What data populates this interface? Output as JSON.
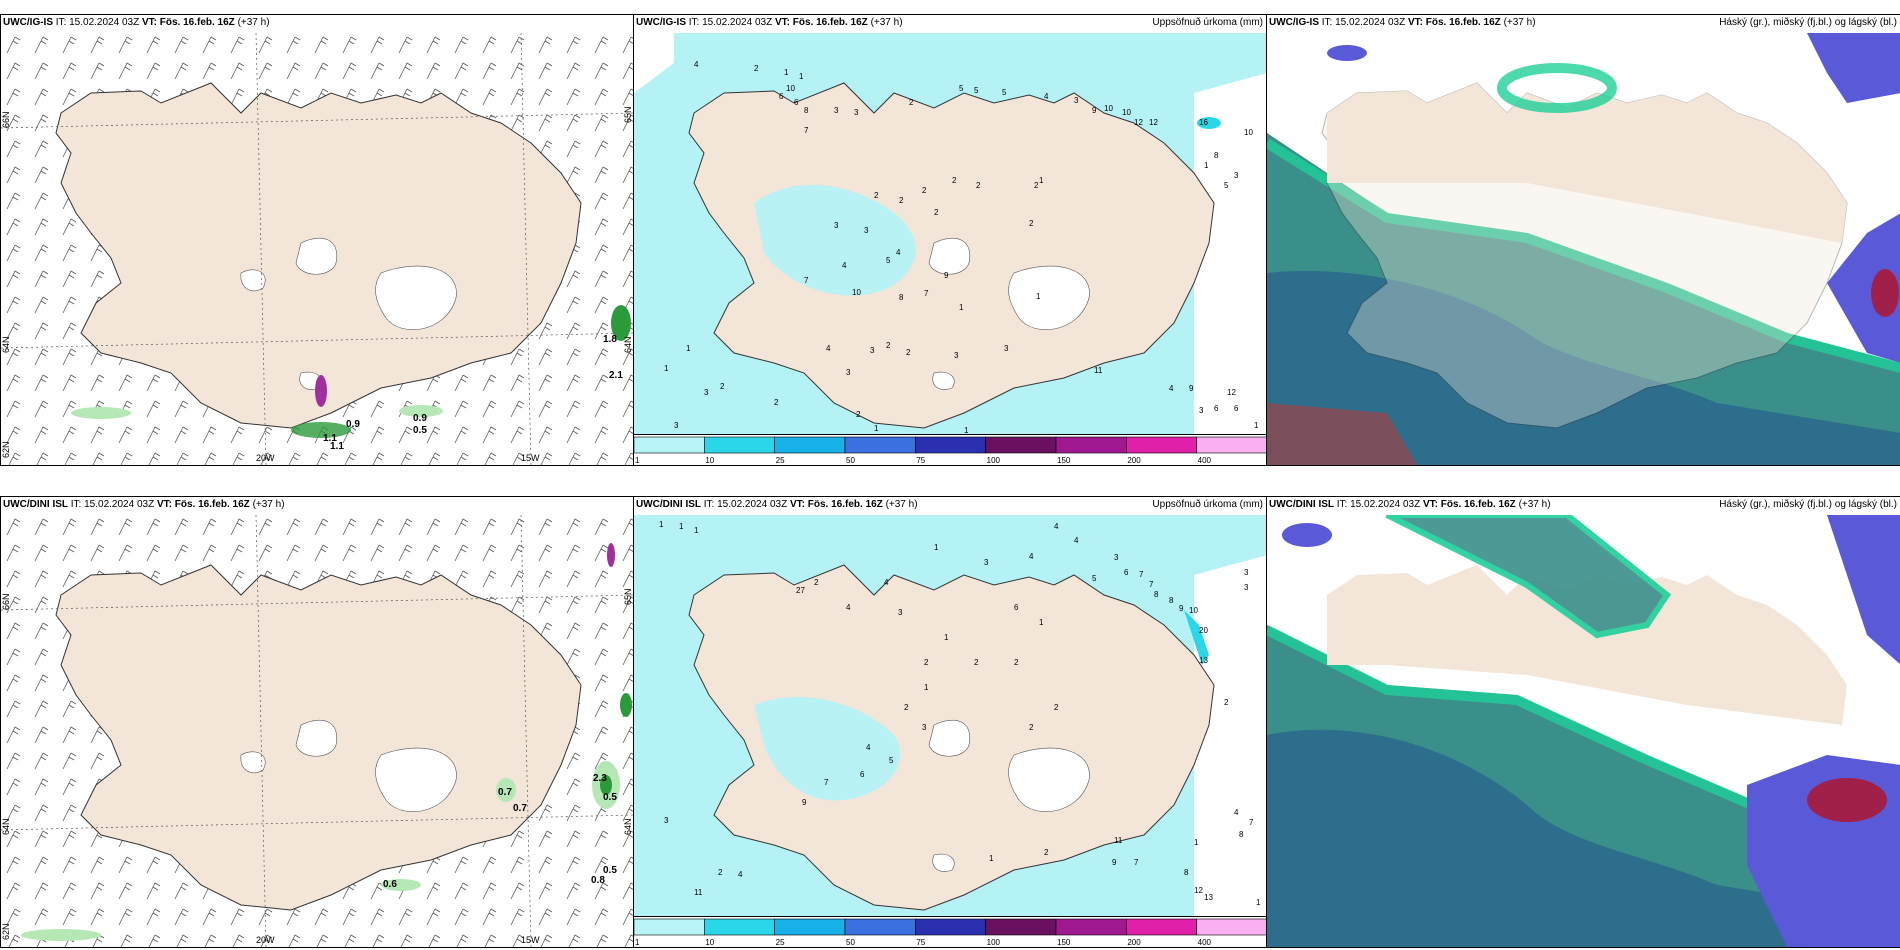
{
  "panels": [
    {
      "model": "UWC/IG-IS",
      "it_label": "IT:",
      "it_value": "15.02.2024 03Z",
      "vt_label": "VT:",
      "vt_value": "Fös. 16.feb. 16Z",
      "lead": "(+37 h)",
      "right_title": "",
      "lat_labels": [
        "66N",
        "64N",
        "62N"
      ],
      "lat_labels_right": [
        "65N",
        "64N"
      ],
      "lon_labels": [
        "20W",
        "15W"
      ],
      "values": [
        "1.8",
        "2.1",
        "0.9",
        "0.5",
        "0.9",
        "1.1",
        "1.1"
      ]
    },
    {
      "model": "UWC/IG-IS",
      "it_label": "IT:",
      "it_value": "15.02.2024 03Z",
      "vt_label": "VT:",
      "vt_value": "Fös. 16.feb. 16Z",
      "lead": "(+37 h)",
      "right_title": "Uppsöfnuð úrkoma (mm)",
      "values": [
        "4",
        "2",
        "1",
        "1",
        "6",
        "10",
        "6",
        "8",
        "7",
        "3",
        "3",
        "2",
        "5",
        "5",
        "5",
        "4",
        "3",
        "9",
        "10",
        "10",
        "16",
        "12",
        "12",
        "10",
        "1",
        "8",
        "5",
        "3",
        "2",
        "2",
        "2",
        "2",
        "1",
        "2",
        "2",
        "2",
        "2",
        "3",
        "3",
        "4",
        "4",
        "7",
        "5",
        "9",
        "10",
        "8",
        "7",
        "1",
        "1",
        "3",
        "2",
        "3",
        "2",
        "3",
        "4",
        "3",
        "11",
        "12",
        "6",
        "6",
        "9",
        "3",
        "4",
        "2",
        "3",
        "1",
        "1",
        "2",
        "2",
        "1",
        "3",
        "1",
        "1"
      ]
    },
    {
      "model": "UWC/IG-IS",
      "it_label": "IT:",
      "it_value": "15.02.2024 03Z",
      "vt_label": "VT:",
      "vt_value": "Fös. 16.feb. 16Z",
      "lead": "(+37 h)",
      "right_title": "Háský (gr.), miðský (fj.bl.) og lágský (bl.)"
    },
    {
      "model": "UWC/DINI ISL",
      "it_label": "IT:",
      "it_value": "15.02.2024 03Z",
      "vt_label": "VT:",
      "vt_value": "Fös. 16.feb. 16Z",
      "lead": "(+37 h)",
      "right_title": "",
      "lat_labels": [
        "66N",
        "64N",
        "62N"
      ],
      "lat_labels_right": [
        "65N",
        "64N"
      ],
      "lon_labels": [
        "20W",
        "15W"
      ],
      "values": [
        "2.3",
        "0.5",
        "0.5",
        "0.8",
        "0.7",
        "0.7",
        "0.6"
      ]
    },
    {
      "model": "UWC/DINI ISL",
      "it_label": "IT:",
      "it_value": "15.02.2024 03Z",
      "vt_label": "VT:",
      "vt_value": "Fös. 16.feb. 16Z",
      "lead": "(+37 h)",
      "right_title": "Uppsöfnuð úrkoma (mm)",
      "values": [
        "1",
        "1",
        "1",
        "4",
        "4",
        "2",
        "1",
        "3",
        "4",
        "3",
        "5",
        "6",
        "7",
        "7",
        "8",
        "8",
        "9",
        "10",
        "27",
        "20",
        "13",
        "3",
        "3",
        "2",
        "4",
        "6",
        "4",
        "3",
        "1",
        "1",
        "2",
        "2",
        "2",
        "1",
        "2",
        "2",
        "2",
        "3",
        "4",
        "5",
        "6",
        "9",
        "7",
        "11",
        "12",
        "13",
        "9",
        "8",
        "7",
        "2",
        "1",
        "1",
        "2",
        "4",
        "1",
        "3",
        "4",
        "7",
        "8",
        "11"
      ]
    },
    {
      "model": "UWC/DINI ISL",
      "it_label": "IT:",
      "it_value": "15.02.2024 03Z",
      "vt_label": "VT:",
      "vt_value": "Fös. 16.feb. 16Z",
      "lead": "(+37 h)",
      "right_title": "Háský (gr.), miðský (fj.bl.) og lágský (bl.)"
    }
  ],
  "colorbar": {
    "ticks": [
      "1",
      "10",
      "25",
      "50",
      "75",
      "100",
      "150",
      "200",
      "400"
    ],
    "colors": [
      "#b8f4f8",
      "#2ad6e8",
      "#18b0e8",
      "#3a70e0",
      "#2a30b0",
      "#6a1060",
      "#a01890",
      "#e020a8",
      "#f8b0f0"
    ]
  },
  "colors": {
    "land": "#f3e6d8",
    "precip_light": "#b4f2f6",
    "high_cloud": "#1fcf9a",
    "mid_cloud": "#2c6e8c",
    "low_cloud": "#5a5ad8",
    "rain_green": "#b6e8b6"
  }
}
